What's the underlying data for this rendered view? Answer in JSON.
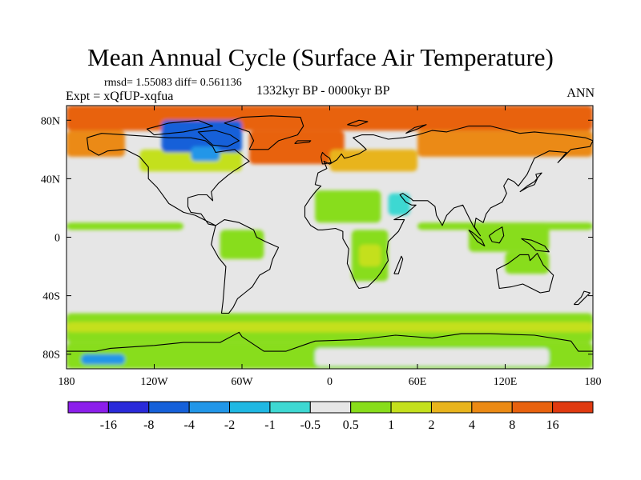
{
  "title": "Mean Annual Cycle (Surface Air Temperature)",
  "stats": {
    "rmsd_label": "rmsd=",
    "rmsd": "1.55083",
    "diff_label": "diff=",
    "diff": "0.561136"
  },
  "experiment": "Expt = xQfUP-xqfua",
  "period": "1332kyr BP - 0000kyr BP",
  "season": "ANN",
  "axes": {
    "lon_ticks": [
      {
        "value": -180,
        "label": "180"
      },
      {
        "value": -120,
        "label": "120W"
      },
      {
        "value": -60,
        "label": "60W"
      },
      {
        "value": 0,
        "label": "0"
      },
      {
        "value": 60,
        "label": "60E"
      },
      {
        "value": 120,
        "label": "120E"
      },
      {
        "value": 180,
        "label": "180"
      }
    ],
    "lat_ticks": [
      {
        "value": 80,
        "label": "80N"
      },
      {
        "value": 40,
        "label": "40N"
      },
      {
        "value": 0,
        "label": "0"
      },
      {
        "value": -40,
        "label": "40S"
      },
      {
        "value": -80,
        "label": "80S"
      }
    ],
    "lon_range": [
      -180,
      180
    ],
    "lat_range": [
      -90,
      90
    ]
  },
  "colorbar": {
    "colors": [
      "#8c1eeb",
      "#2a2ad9",
      "#1560d9",
      "#2196e8",
      "#1fb8e3",
      "#3ed8d2",
      "#e6e6e6",
      "#88dd1a",
      "#c4e01c",
      "#e8b41c",
      "#eb8a14",
      "#e8620e",
      "#e03a10"
    ],
    "labels": [
      "-16",
      "-8",
      "-4",
      "-2",
      "-1",
      "-0.5",
      "0.5",
      "1",
      "2",
      "4",
      "8",
      "16"
    ]
  },
  "map_colors": {
    "neutral": "#e6e6e6",
    "light_green": "#88dd1a",
    "yellow_green": "#c4e01c",
    "light_orange": "#e8b41c",
    "orange": "#eb8a14",
    "dark_orange": "#e8620e",
    "cyan": "#3ed8d2",
    "light_blue": "#2196e8",
    "blue": "#1560d9",
    "coast": "#000000"
  },
  "map_regions": [
    {
      "name": "arctic-ocean-warm",
      "color": "dark_orange",
      "lat0": 73,
      "lat1": 90,
      "lon0": -180,
      "lon1": 180
    },
    {
      "name": "north-pacific-warm",
      "color": "orange",
      "lat0": 55,
      "lat1": 73,
      "lon0": -180,
      "lon1": -140
    },
    {
      "name": "siberia-warm",
      "color": "orange",
      "lat0": 55,
      "lat1": 73,
      "lon0": 60,
      "lon1": 180
    },
    {
      "name": "north-atlantic-warm",
      "color": "dark_orange",
      "lat0": 50,
      "lat1": 73,
      "lon0": -55,
      "lon1": 10
    },
    {
      "name": "europe-warm",
      "color": "light_orange",
      "lat0": 45,
      "lat1": 60,
      "lon0": 0,
      "lon1": 60
    },
    {
      "name": "north-america-warm",
      "color": "yellow_green",
      "lat0": 45,
      "lat1": 60,
      "lon0": -130,
      "lon1": -60
    },
    {
      "name": "canada-cold",
      "color": "blue",
      "lat0": 58,
      "lat1": 80,
      "lon0": -115,
      "lon1": -60
    },
    {
      "name": "hudson-cold",
      "color": "light_blue",
      "lat0": 52,
      "lat1": 62,
      "lon0": -95,
      "lon1": -75
    },
    {
      "name": "sahara-warm",
      "color": "light_green",
      "lat0": 10,
      "lat1": 32,
      "lon0": -10,
      "lon1": 35
    },
    {
      "name": "arabia-cool",
      "color": "cyan",
      "lat0": 15,
      "lat1": 30,
      "lon0": 40,
      "lon1": 55
    },
    {
      "name": "amazon-warm",
      "color": "light_green",
      "lat0": -15,
      "lat1": 5,
      "lon0": -75,
      "lon1": -45
    },
    {
      "name": "africa-warm",
      "color": "light_green",
      "lat0": -30,
      "lat1": 5,
      "lon0": 15,
      "lon1": 40
    },
    {
      "name": "africa-south",
      "color": "yellow_green",
      "lat0": -20,
      "lat1": -5,
      "lon0": 20,
      "lon1": 35
    },
    {
      "name": "pacific-band-north",
      "color": "light_green",
      "lat0": 5,
      "lat1": 10,
      "lon0": -180,
      "lon1": -100
    },
    {
      "name": "maritime-continent",
      "color": "light_green",
      "lat0": -10,
      "lat1": 10,
      "lon0": 95,
      "lon1": 150
    },
    {
      "name": "pacific-band-west",
      "color": "light_green",
      "lat0": 5,
      "lat1": 10,
      "lon0": 60,
      "lon1": 180
    },
    {
      "name": "australia-warm",
      "color": "light_green",
      "lat0": -25,
      "lat1": -10,
      "lon0": 120,
      "lon1": 150
    },
    {
      "name": "southern-ocean-green",
      "color": "light_green",
      "lat0": -72,
      "lat1": -52,
      "lon0": -180,
      "lon1": 180
    },
    {
      "name": "southern-ocean-yellow",
      "color": "yellow_green",
      "lat0": -65,
      "lat1": -58,
      "lon0": -180,
      "lon1": 180
    },
    {
      "name": "antarctica-warm",
      "color": "light_green",
      "lat0": -90,
      "lat1": -72,
      "lon0": -180,
      "lon1": 180
    },
    {
      "name": "antarctica-neutral",
      "color": "neutral",
      "lat0": -88,
      "lat1": -76,
      "lon0": -10,
      "lon1": 150
    },
    {
      "name": "antarctica-cold",
      "color": "light_blue",
      "lat0": -87,
      "lat1": -80,
      "lon0": -170,
      "lon1": -140
    }
  ],
  "coastlines": [
    {
      "name": "north-america",
      "points": [
        [
          -166,
          68
        ],
        [
          -156,
          71
        ],
        [
          -140,
          70
        ],
        [
          -125,
          69
        ],
        [
          -110,
          68
        ],
        [
          -95,
          68
        ],
        [
          -85,
          66
        ],
        [
          -80,
          62
        ],
        [
          -78,
          58
        ],
        [
          -65,
          60
        ],
        [
          -55,
          52
        ],
        [
          -66,
          45
        ],
        [
          -70,
          42
        ],
        [
          -76,
          37
        ],
        [
          -81,
          31
        ],
        [
          -80,
          25
        ],
        [
          -84,
          29
        ],
        [
          -90,
          29
        ],
        [
          -97,
          27
        ],
        [
          -97,
          21
        ],
        [
          -95,
          17
        ],
        [
          -88,
          16
        ],
        [
          -83,
          9
        ],
        [
          -78,
          8
        ],
        [
          -86,
          12
        ],
        [
          -92,
          15
        ],
        [
          -100,
          17
        ],
        [
          -105,
          20
        ],
        [
          -110,
          23
        ],
        [
          -115,
          30
        ],
        [
          -118,
          34
        ],
        [
          -124,
          40
        ],
        [
          -124,
          48
        ],
        [
          -130,
          55
        ],
        [
          -140,
          60
        ],
        [
          -152,
          59
        ],
        [
          -158,
          56
        ],
        [
          -165,
          60
        ],
        [
          -166,
          68
        ]
      ]
    },
    {
      "name": "greenland",
      "points": [
        [
          -55,
          60
        ],
        [
          -42,
          60
        ],
        [
          -35,
          66
        ],
        [
          -22,
          70
        ],
        [
          -18,
          76
        ],
        [
          -20,
          82
        ],
        [
          -40,
          83
        ],
        [
          -60,
          82
        ],
        [
          -72,
          78
        ],
        [
          -66,
          76
        ],
        [
          -55,
          72
        ],
        [
          -52,
          66
        ],
        [
          -55,
          60
        ]
      ]
    },
    {
      "name": "south-america",
      "points": [
        [
          -78,
          8
        ],
        [
          -72,
          12
        ],
        [
          -62,
          10
        ],
        [
          -52,
          5
        ],
        [
          -50,
          0
        ],
        [
          -44,
          -3
        ],
        [
          -35,
          -7
        ],
        [
          -39,
          -15
        ],
        [
          -41,
          -22
        ],
        [
          -48,
          -26
        ],
        [
          -53,
          -34
        ],
        [
          -58,
          -38
        ],
        [
          -63,
          -42
        ],
        [
          -66,
          -48
        ],
        [
          -69,
          -52
        ],
        [
          -74,
          -52
        ],
        [
          -73,
          -44
        ],
        [
          -72,
          -32
        ],
        [
          -71,
          -20
        ],
        [
          -76,
          -14
        ],
        [
          -81,
          -5
        ],
        [
          -80,
          0
        ],
        [
          -78,
          8
        ]
      ]
    },
    {
      "name": "eurasia-africa",
      "points": [
        [
          -10,
          36
        ],
        [
          -8,
          44
        ],
        [
          -2,
          47
        ],
        [
          -4,
          52
        ],
        [
          0,
          50
        ],
        [
          5,
          53
        ],
        [
          8,
          57
        ],
        [
          10,
          54
        ],
        [
          14,
          55
        ],
        [
          20,
          57
        ],
        [
          25,
          60
        ],
        [
          22,
          63
        ],
        [
          16,
          68
        ],
        [
          22,
          70
        ],
        [
          30,
          70
        ],
        [
          40,
          67
        ],
        [
          50,
          68
        ],
        [
          60,
          70
        ],
        [
          70,
          73
        ],
        [
          80,
          72
        ],
        [
          95,
          76
        ],
        [
          110,
          76
        ],
        [
          130,
          71
        ],
        [
          140,
          72
        ],
        [
          160,
          70
        ],
        [
          175,
          68
        ],
        [
          180,
          66
        ],
        [
          178,
          62
        ],
        [
          165,
          60
        ],
        [
          160,
          55
        ],
        [
          156,
          51
        ],
        [
          162,
          58
        ],
        [
          150,
          59
        ],
        [
          140,
          54
        ],
        [
          135,
          43
        ],
        [
          129,
          35
        ],
        [
          126,
          38
        ],
        [
          122,
          40
        ],
        [
          119,
          35
        ],
        [
          121,
          30
        ],
        [
          118,
          24
        ],
        [
          110,
          20
        ],
        [
          107,
          16
        ],
        [
          105,
          10
        ],
        [
          100,
          13
        ],
        [
          99,
          7
        ],
        [
          103,
          1
        ],
        [
          98,
          8
        ],
        [
          94,
          16
        ],
        [
          91,
          22
        ],
        [
          85,
          20
        ],
        [
          80,
          15
        ],
        [
          77,
          8
        ],
        [
          73,
          15
        ],
        [
          72,
          21
        ],
        [
          67,
          25
        ],
        [
          57,
          25
        ],
        [
          56,
          26
        ],
        [
          50,
          30
        ],
        [
          48,
          29
        ],
        [
          52,
          24
        ],
        [
          56,
          22
        ],
        [
          59,
          22
        ],
        [
          52,
          16
        ],
        [
          44,
          12
        ],
        [
          51,
          12
        ],
        [
          47,
          4
        ],
        [
          40,
          -3
        ],
        [
          39,
          -10
        ],
        [
          40,
          -16
        ],
        [
          35,
          -24
        ],
        [
          32,
          -28
        ],
        [
          26,
          -34
        ],
        [
          20,
          -35
        ],
        [
          18,
          -32
        ],
        [
          12,
          -18
        ],
        [
          13,
          -8
        ],
        [
          9,
          -1
        ],
        [
          9,
          4
        ],
        [
          4,
          6
        ],
        [
          -5,
          5
        ],
        [
          -8,
          5
        ],
        [
          -13,
          8
        ],
        [
          -17,
          14
        ],
        [
          -17,
          21
        ],
        [
          -13,
          27
        ],
        [
          -9,
          32
        ],
        [
          -6,
          35
        ],
        [
          -10,
          36
        ]
      ]
    },
    {
      "name": "madagascar",
      "points": [
        [
          44,
          -25
        ],
        [
          49,
          -13
        ],
        [
          50,
          -15
        ],
        [
          47,
          -25
        ],
        [
          44,
          -25
        ]
      ]
    },
    {
      "name": "australia",
      "points": [
        [
          114,
          -22
        ],
        [
          122,
          -18
        ],
        [
          130,
          -12
        ],
        [
          136,
          -12
        ],
        [
          137,
          -16
        ],
        [
          142,
          -11
        ],
        [
          146,
          -19
        ],
        [
          153,
          -26
        ],
        [
          150,
          -37
        ],
        [
          144,
          -38
        ],
        [
          138,
          -35
        ],
        [
          132,
          -32
        ],
        [
          124,
          -34
        ],
        [
          116,
          -35
        ],
        [
          114,
          -22
        ]
      ]
    },
    {
      "name": "antarctica",
      "points": [
        [
          -180,
          -78
        ],
        [
          -160,
          -78
        ],
        [
          -150,
          -76
        ],
        [
          -120,
          -74
        ],
        [
          -100,
          -72
        ],
        [
          -75,
          -72
        ],
        [
          -62,
          -65
        ],
        [
          -60,
          -68
        ],
        [
          -45,
          -78
        ],
        [
          -30,
          -78
        ],
        [
          -10,
          -71
        ],
        [
          20,
          -70
        ],
        [
          45,
          -67
        ],
        [
          70,
          -69
        ],
        [
          90,
          -66
        ],
        [
          110,
          -66
        ],
        [
          140,
          -67
        ],
        [
          165,
          -71
        ],
        [
          170,
          -78
        ],
        [
          180,
          -78
        ]
      ]
    },
    {
      "name": "uk",
      "points": [
        [
          -5,
          50
        ],
        [
          1,
          51
        ],
        [
          0,
          54
        ],
        [
          -3,
          56
        ],
        [
          -5,
          58
        ],
        [
          -6,
          55
        ],
        [
          -5,
          50
        ]
      ]
    },
    {
      "name": "japan",
      "points": [
        [
          130,
          31
        ],
        [
          135,
          34
        ],
        [
          140,
          36
        ],
        [
          142,
          40
        ],
        [
          141,
          43
        ],
        [
          145,
          44
        ],
        [
          140,
          38
        ],
        [
          135,
          35
        ],
        [
          130,
          31
        ]
      ]
    },
    {
      "name": "borneo",
      "points": [
        [
          109,
          1
        ],
        [
          113,
          4
        ],
        [
          118,
          7
        ],
        [
          119,
          1
        ],
        [
          116,
          -4
        ],
        [
          111,
          -3
        ],
        [
          109,
          1
        ]
      ]
    },
    {
      "name": "sumatra",
      "points": [
        [
          95,
          5
        ],
        [
          98,
          3
        ],
        [
          104,
          -2
        ],
        [
          106,
          -6
        ],
        [
          101,
          -3
        ],
        [
          95,
          5
        ]
      ]
    },
    {
      "name": "new-guinea",
      "points": [
        [
          131,
          -1
        ],
        [
          138,
          -2
        ],
        [
          147,
          -6
        ],
        [
          150,
          -10
        ],
        [
          141,
          -9
        ],
        [
          137,
          -5
        ],
        [
          131,
          -1
        ]
      ]
    },
    {
      "name": "new-zealand",
      "points": [
        [
          167,
          -46
        ],
        [
          172,
          -41
        ],
        [
          174,
          -37
        ],
        [
          178,
          -38
        ],
        [
          174,
          -42
        ],
        [
          170,
          -46
        ],
        [
          167,
          -46
        ]
      ]
    },
    {
      "name": "baffin-island",
      "points": [
        [
          -80,
          63
        ],
        [
          -70,
          62
        ],
        [
          -62,
          66
        ],
        [
          -68,
          70
        ],
        [
          -78,
          73
        ],
        [
          -90,
          72
        ],
        [
          -80,
          63
        ]
      ]
    },
    {
      "name": "arctic-islands",
      "points": [
        [
          -120,
          70
        ],
        [
          -100,
          72
        ],
        [
          -80,
          76
        ],
        [
          -90,
          80
        ],
        [
          -110,
          78
        ],
        [
          -125,
          74
        ],
        [
          -120,
          70
        ]
      ]
    },
    {
      "name": "svalbard",
      "points": [
        [
          12,
          77
        ],
        [
          20,
          80
        ],
        [
          26,
          79
        ],
        [
          18,
          76
        ],
        [
          12,
          77
        ]
      ]
    },
    {
      "name": "novaya-zemlya",
      "points": [
        [
          52,
          71
        ],
        [
          58,
          75
        ],
        [
          66,
          77
        ],
        [
          60,
          74
        ],
        [
          52,
          71
        ]
      ]
    },
    {
      "name": "iceland",
      "points": [
        [
          -24,
          64
        ],
        [
          -14,
          65
        ],
        [
          -13,
          66
        ],
        [
          -22,
          66
        ],
        [
          -24,
          64
        ]
      ]
    }
  ]
}
